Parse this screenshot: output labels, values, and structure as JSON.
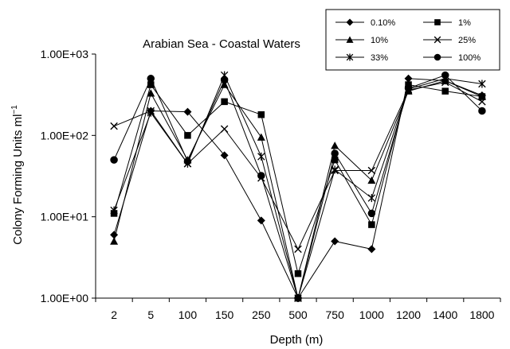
{
  "chart_data": {
    "type": "line",
    "title": "Arabian Sea - Coastal Waters",
    "xlabel": "Depth (m)",
    "ylabel": "Colony Forming Units ml",
    "ylabel_sup": "−1",
    "y_scale": "log",
    "ylim": [
      1,
      1000
    ],
    "y_ticks": [
      {
        "value": 1,
        "label": "1.00E+00"
      },
      {
        "value": 10,
        "label": "1.00E+01"
      },
      {
        "value": 100,
        "label": "1.00E+02"
      },
      {
        "value": 1000,
        "label": "1.00E+03"
      }
    ],
    "grid": false,
    "legend_position": "top-right",
    "categories": [
      "2",
      "5",
      "100",
      "150",
      "250",
      "500",
      "750",
      "1000",
      "1200",
      "1400",
      "1800"
    ],
    "series": [
      {
        "name": "0.10%",
        "marker": "diamond",
        "values": [
          6,
          200,
          195,
          57,
          9,
          1,
          5,
          4,
          500,
          470,
          310
        ]
      },
      {
        "name": "1%",
        "marker": "square",
        "values": [
          11,
          420,
          100,
          260,
          180,
          2,
          50,
          8,
          420,
          350,
          300
        ]
      },
      {
        "name": "10%",
        "marker": "triangle",
        "values": [
          5,
          330,
          50,
          420,
          95,
          1,
          75,
          28,
          350,
          470,
          300
        ]
      },
      {
        "name": "25%",
        "marker": "x",
        "values": [
          130,
          200,
          45,
          120,
          30,
          4,
          37,
          37,
          360,
          450,
          260
        ]
      },
      {
        "name": "33%",
        "marker": "asterisk",
        "values": [
          12,
          190,
          45,
          550,
          55,
          1,
          38,
          17,
          370,
          500,
          430
        ]
      },
      {
        "name": "100%",
        "marker": "circle",
        "values": [
          50,
          500,
          48,
          480,
          32,
          1,
          60,
          11,
          380,
          550,
          200
        ]
      }
    ]
  }
}
